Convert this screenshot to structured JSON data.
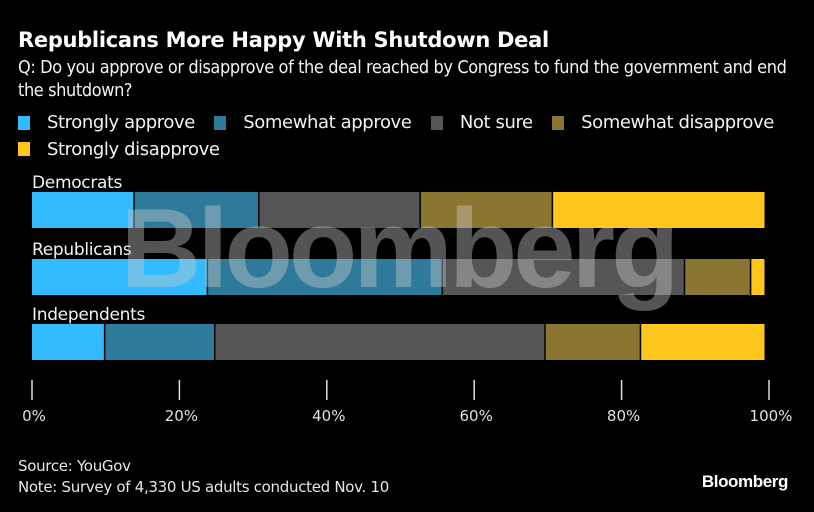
{
  "header": {
    "title": "Republicans More Happy With Shutdown Deal",
    "subtitle": "Q: Do you approve or disapprove of the deal reached by Congress to fund the government and end the shutdown?"
  },
  "footer": {
    "source": "Source: YouGov",
    "note": "Note: Survey of 4,330 US adults conducted Nov. 10",
    "brand": "Bloomberg"
  },
  "watermark": "Bloomberg",
  "colors": {
    "background": "#000000",
    "strongly_approve": "#33bbff",
    "somewhat_approve": "#2e7a9a",
    "not_sure": "#555555",
    "somewhat_disapprove": "#8a7630",
    "strongly_disapprove": "#ffc61e"
  },
  "chart_data": {
    "type": "bar",
    "orientation": "horizontal",
    "stacked": true,
    "title": "Republicans More Happy With Shutdown Deal",
    "subtitle": "Q: Do you approve or disapprove of the deal reached by Congress to fund the government and end the shutdown?",
    "categories": [
      "Democrats",
      "Republicans",
      "Independents"
    ],
    "series": [
      {
        "name": "Strongly approve",
        "color": "#33bbff",
        "values": [
          14,
          24,
          10
        ]
      },
      {
        "name": "Somewhat approve",
        "color": "#2e7a9a",
        "values": [
          17,
          32,
          15
        ]
      },
      {
        "name": "Not sure",
        "color": "#555555",
        "values": [
          22,
          33,
          45
        ]
      },
      {
        "name": "Somewhat disapprove",
        "color": "#8a7630",
        "values": [
          18,
          9,
          13
        ]
      },
      {
        "name": "Strongly disapprove",
        "color": "#ffc61e",
        "values": [
          29,
          2,
          17
        ]
      }
    ],
    "xlabel": "",
    "ylabel": "",
    "xlim": [
      0,
      100
    ],
    "xticks": [
      "0%",
      "20%",
      "40%",
      "60%",
      "80%",
      "100%"
    ],
    "xtick_values": [
      0,
      20,
      40,
      60,
      80,
      100
    ],
    "grid": false,
    "legend_position": "top-left"
  }
}
